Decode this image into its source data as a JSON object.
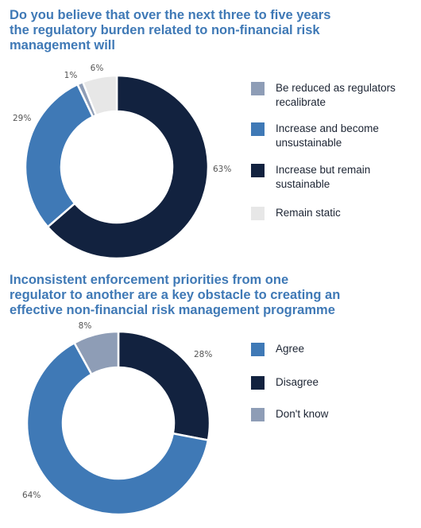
{
  "chart_data": [
    {
      "type": "pie",
      "title": "Do you believe that over the next three to five years\nthe regulatory burden related to non-financial risk\nmanagement will",
      "categories": [
        "Be reduced as regulators\nrecalibrate",
        "Increase and become\nunsustainable",
        "Increase but remain\nsustainable",
        "Remain static"
      ],
      "values": [
        1,
        29,
        63,
        6
      ],
      "data_labels": [
        "1%",
        "29%",
        "63%",
        "6%"
      ],
      "colors": [
        "#8e9db6",
        "#3f79b6",
        "#12223f",
        "#e7e7e7"
      ],
      "slice_order": [
        2,
        1,
        0,
        3
      ],
      "donut": true,
      "legend": "right"
    },
    {
      "type": "pie",
      "title": "Inconsistent enforcement priorities from one\nregulator to another are a key obstacle to creating an\neffective non-financial risk management programme",
      "categories": [
        "Agree",
        "Disagree",
        "Don't know"
      ],
      "values": [
        64,
        28,
        8
      ],
      "data_labels": [
        "64%",
        "28%",
        "8%"
      ],
      "colors": [
        "#3f79b6",
        "#12223f",
        "#8e9db6"
      ],
      "slice_order": [
        1,
        0,
        2
      ],
      "donut": true,
      "legend": "right"
    }
  ]
}
